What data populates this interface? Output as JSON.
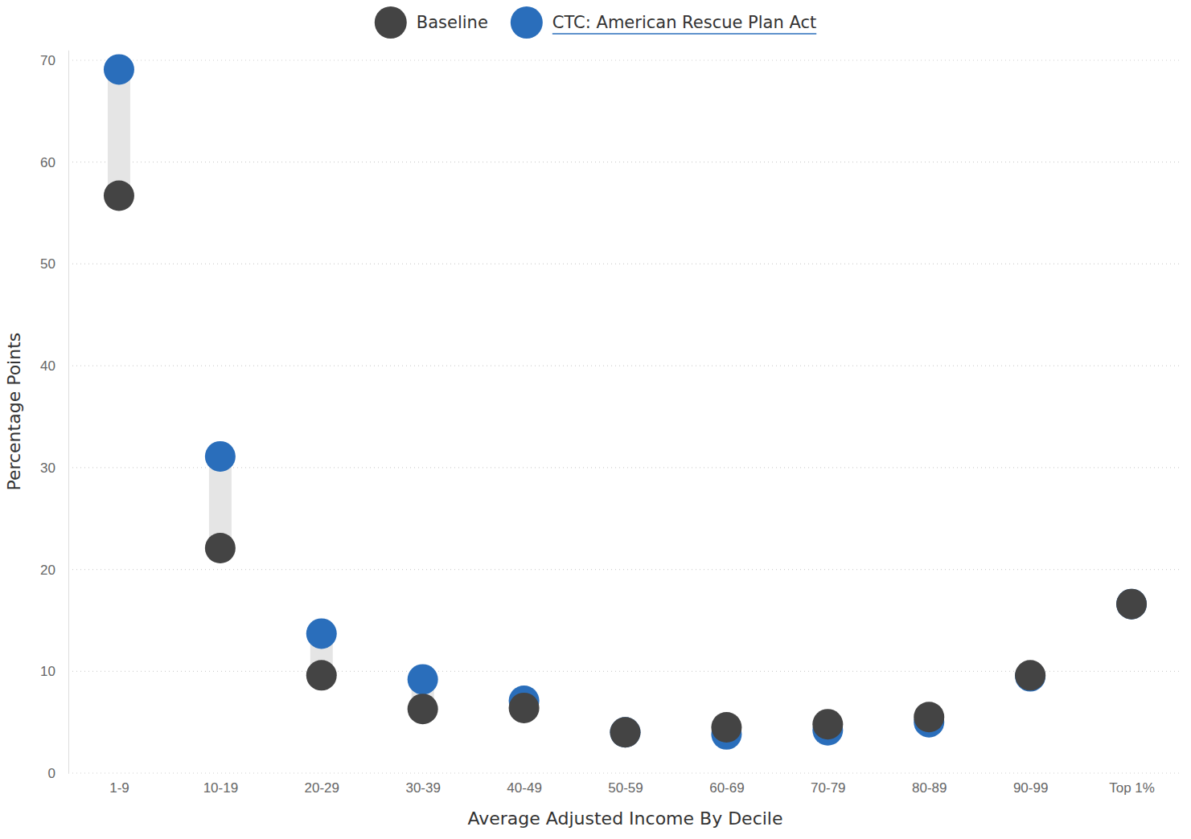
{
  "chart_data": {
    "type": "dumbbell",
    "x_label": "Average Adjusted Income By Decile",
    "y_label": "Percentage Points",
    "categories": [
      "1-9",
      "10-19",
      "20-29",
      "30-39",
      "40-49",
      "50-59",
      "60-69",
      "70-79",
      "80-89",
      "90-99",
      "Top 1%"
    ],
    "series": [
      {
        "name": "Baseline",
        "color": "#444444",
        "marker": "circle",
        "values": [
          56.7,
          22.1,
          9.6,
          6.3,
          6.4,
          4.0,
          4.5,
          4.8,
          5.5,
          9.6,
          16.6
        ]
      },
      {
        "name": "CTC: American Rescue Plan Act",
        "color": "#2a6ebb",
        "marker": "circle",
        "values": [
          69.1,
          31.1,
          13.7,
          9.2,
          7.1,
          4.0,
          3.8,
          4.2,
          5.0,
          9.5,
          16.6
        ]
      }
    ],
    "ylim": [
      0,
      71
    ],
    "yticks": [
      0,
      10,
      20,
      30,
      40,
      50,
      60,
      70
    ],
    "grid": true,
    "legend": "top"
  }
}
